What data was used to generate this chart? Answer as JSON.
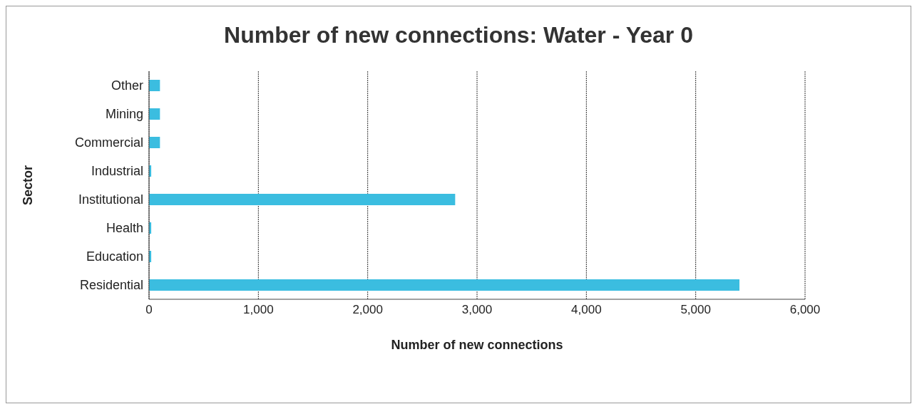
{
  "chart_data": {
    "type": "bar",
    "orientation": "horizontal",
    "title": "Number of new connections: Water - Year 0",
    "xlabel": "Number of new connections",
    "ylabel": "Sector",
    "categories": [
      "Other",
      "Mining",
      "Commercial",
      "Industrial",
      "Institutional",
      "Health",
      "Education",
      "Residential"
    ],
    "values": [
      100,
      100,
      100,
      20,
      2800,
      20,
      20,
      5400
    ],
    "color": "#3bbde0",
    "xlim": [
      0,
      6000
    ],
    "xticks": [
      0,
      {
        "value": 1000,
        "label": "1,000"
      },
      {
        "value": 2000,
        "label": "2,000"
      },
      {
        "value": 3000,
        "label": "3,000"
      },
      {
        "value": 4000,
        "label": "4,000"
      },
      {
        "value": 5000,
        "label": "5,000"
      },
      {
        "value": 6000,
        "label": "6,000"
      }
    ],
    "grid": "x"
  }
}
